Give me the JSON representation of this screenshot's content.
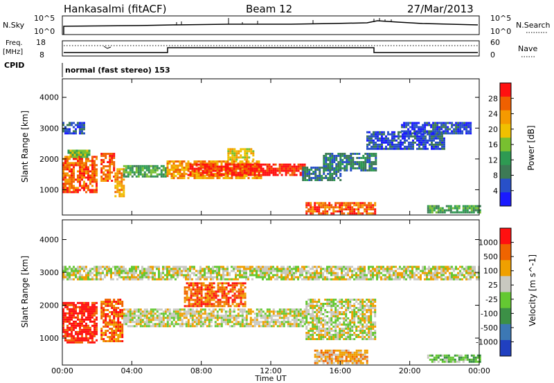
{
  "header": {
    "station": "Hankasalmi (fitACF)",
    "beam": "Beam 12",
    "date": "27/Mar/2013"
  },
  "top_panels": {
    "nsky_label": "N.Sky",
    "nsky_ticks": [
      "10^5",
      "10^0"
    ],
    "nsearch_label": "N.Search",
    "nsearch_ticks": [
      "10^5",
      "10^0"
    ],
    "freq_label_1": "Freq.",
    "freq_label_2": "[MHz]",
    "freq_ticks": [
      "18",
      "8"
    ],
    "nave_label": "Nave",
    "nave_ticks": [
      "60",
      "0"
    ],
    "cpid_label": "CPID",
    "cpid_text": "normal (fast stereo) 153"
  },
  "chart_data": [
    {
      "type": "heatmap",
      "panel": "power",
      "xlabel": "Time UT",
      "ylabel": "Slant Range [km]",
      "x_ticks": [
        "00:00",
        "04:00",
        "08:00",
        "12:00",
        "16:00",
        "20:00",
        "00:00"
      ],
      "x_range_hours": [
        0,
        24
      ],
      "y_ticks": [
        1000,
        2000,
        3000,
        4000
      ],
      "ylim": [
        180,
        4600
      ],
      "colorbar_label": "Power [dB]",
      "colorbar_ticks": [
        "28",
        "24",
        "20",
        "16",
        "12",
        "8",
        "4"
      ],
      "colorbar_colors": [
        "#1a1aff",
        "#2850c8",
        "#3d7a55",
        "#2e9a52",
        "#78c030",
        "#f0c000",
        "#f59a00",
        "#f06000",
        "#ff1010"
      ],
      "regions": [
        {
          "t0": 0.0,
          "t1": 2.0,
          "r0": 900,
          "r1": 2100,
          "level": 7
        },
        {
          "t0": 0.3,
          "t1": 1.6,
          "r0": 2050,
          "r1": 2300,
          "level": 4
        },
        {
          "t0": 0.0,
          "t1": 1.2,
          "r0": 2800,
          "r1": 3200,
          "level": 1
        },
        {
          "t0": 2.2,
          "t1": 3.0,
          "r0": 1300,
          "r1": 2200,
          "level": 7
        },
        {
          "t0": 3.0,
          "t1": 3.5,
          "r0": 800,
          "r1": 1700,
          "level": 6
        },
        {
          "t0": 3.5,
          "t1": 6.0,
          "r0": 1400,
          "r1": 1800,
          "level": 3
        },
        {
          "t0": 6.0,
          "t1": 11.5,
          "r0": 1350,
          "r1": 1950,
          "level": 6
        },
        {
          "t0": 7.2,
          "t1": 14.0,
          "r0": 1450,
          "r1": 1850,
          "level": 8
        },
        {
          "t0": 9.5,
          "t1": 11.0,
          "r0": 2000,
          "r1": 2350,
          "level": 5
        },
        {
          "t0": 13.8,
          "t1": 16.0,
          "r0": 1300,
          "r1": 1750,
          "level": 2
        },
        {
          "t0": 15.0,
          "t1": 18.0,
          "r0": 1600,
          "r1": 2200,
          "level": 2
        },
        {
          "t0": 17.5,
          "t1": 22.0,
          "r0": 2300,
          "r1": 2900,
          "level": 1
        },
        {
          "t0": 19.5,
          "t1": 23.5,
          "r0": 2800,
          "r1": 3200,
          "level": 1
        },
        {
          "t0": 14.0,
          "t1": 18.0,
          "r0": 250,
          "r1": 600,
          "level": 7
        },
        {
          "t0": 21.0,
          "t1": 24.0,
          "r0": 250,
          "r1": 500,
          "level": 3
        }
      ]
    },
    {
      "type": "heatmap",
      "panel": "velocity",
      "xlabel": "Time UT",
      "ylabel": "Slant Range [km]",
      "x_ticks": [
        "00:00",
        "04:00",
        "08:00",
        "12:00",
        "16:00",
        "20:00",
        "00:00"
      ],
      "x_range_hours": [
        0,
        24
      ],
      "y_ticks": [
        1000,
        2000,
        3000,
        4000
      ],
      "ylim": [
        180,
        4600
      ],
      "colorbar_label": "Velocity [m s^-1]",
      "colorbar_ticks": [
        "1000",
        "500",
        "100",
        "25",
        "-25",
        "-100",
        "-500",
        "-1000"
      ],
      "colorbar_colors": [
        "#2040c0",
        "#3c78b4",
        "#3c9046",
        "#64c832",
        "#c8c8c0",
        "#f0a000",
        "#f06400",
        "#ff1010"
      ],
      "regions": [
        {
          "t0": 0.0,
          "t1": 2.0,
          "r0": 900,
          "r1": 2100,
          "level": 7
        },
        {
          "t0": 2.2,
          "t1": 3.5,
          "r0": 900,
          "r1": 2200,
          "level": 6
        },
        {
          "t0": 3.5,
          "t1": 14.0,
          "r0": 1350,
          "r1": 1900,
          "level": 4
        },
        {
          "t0": 7.0,
          "t1": 10.5,
          "r0": 2000,
          "r1": 2700,
          "level": 6
        },
        {
          "t0": 0.0,
          "t1": 24.0,
          "r0": 2800,
          "r1": 3200,
          "level": 4
        },
        {
          "t0": 14.0,
          "t1": 18.0,
          "r0": 1000,
          "r1": 2200,
          "level": 4
        },
        {
          "t0": 14.5,
          "t1": 17.5,
          "r0": 250,
          "r1": 650,
          "level": 5
        },
        {
          "t0": 21.0,
          "t1": 24.0,
          "r0": 250,
          "r1": 500,
          "level": 3
        }
      ]
    }
  ]
}
